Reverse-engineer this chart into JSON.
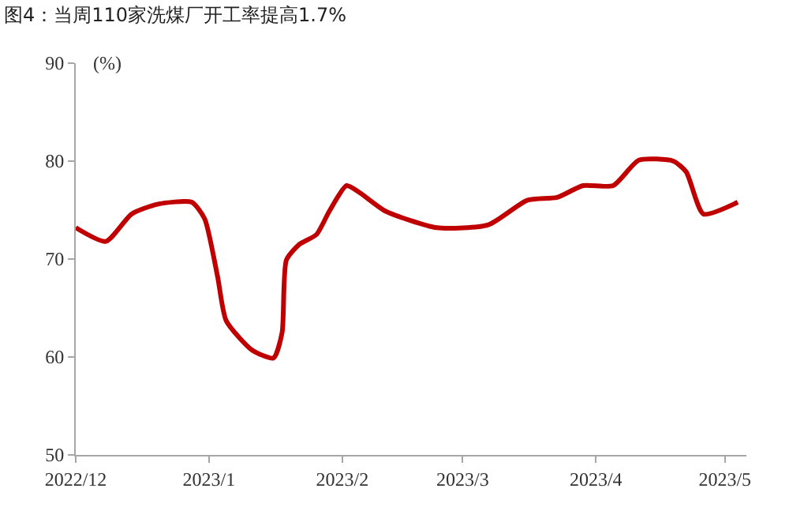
{
  "chart_data": {
    "type": "line",
    "title": "图4：当周110家洗煤厂开工率提高1.7%",
    "ylabel": "(%)",
    "x": [
      "2022-12-01",
      "2022-12-08",
      "2022-12-14",
      "2022-12-20",
      "2022-12-28",
      "2022-12-31",
      "2023-01-03",
      "2023-01-05",
      "2023-01-11",
      "2023-01-16",
      "2023-01-18",
      "2023-01-19",
      "2023-01-22",
      "2023-01-26",
      "2023-01-29",
      "2023-02-02",
      "2023-02-05",
      "2023-02-11",
      "2023-02-23",
      "2023-03-07",
      "2023-03-16",
      "2023-03-23",
      "2023-03-29",
      "2023-04-05",
      "2023-04-11",
      "2023-04-19",
      "2023-04-22",
      "2023-04-26",
      "2023-05-04"
    ],
    "series": [
      {
        "color": "#c00000",
        "values": [
          73.2,
          71.8,
          74.6,
          75.6,
          75.8,
          74.1,
          68.2,
          63.7,
          60.7,
          59.9,
          62.5,
          69.9,
          71.5,
          72.5,
          74.9,
          77.5,
          76.8,
          74.9,
          73.2,
          73.5,
          76.0,
          76.3,
          77.5,
          77.5,
          80.1,
          80.0,
          78.9,
          74.6,
          75.8
        ]
      }
    ],
    "xlim": [
      "2022-12-01",
      "2023-05-06"
    ],
    "xticks": [
      {
        "value": "2022-12-01",
        "label": "2022/12"
      },
      {
        "value": "2023-01-01",
        "label": "2023/1"
      },
      {
        "value": "2023-02-01",
        "label": "2023/2"
      },
      {
        "value": "2023-03-01",
        "label": "2023/3"
      },
      {
        "value": "2023-04-01",
        "label": "2023/4"
      },
      {
        "value": "2023-05-01",
        "label": "2023/5"
      }
    ],
    "ylim": [
      50,
      90
    ],
    "yticks": [
      50,
      60,
      70,
      80,
      90
    ],
    "legend": false,
    "marker": "none",
    "line_style": "solid"
  }
}
